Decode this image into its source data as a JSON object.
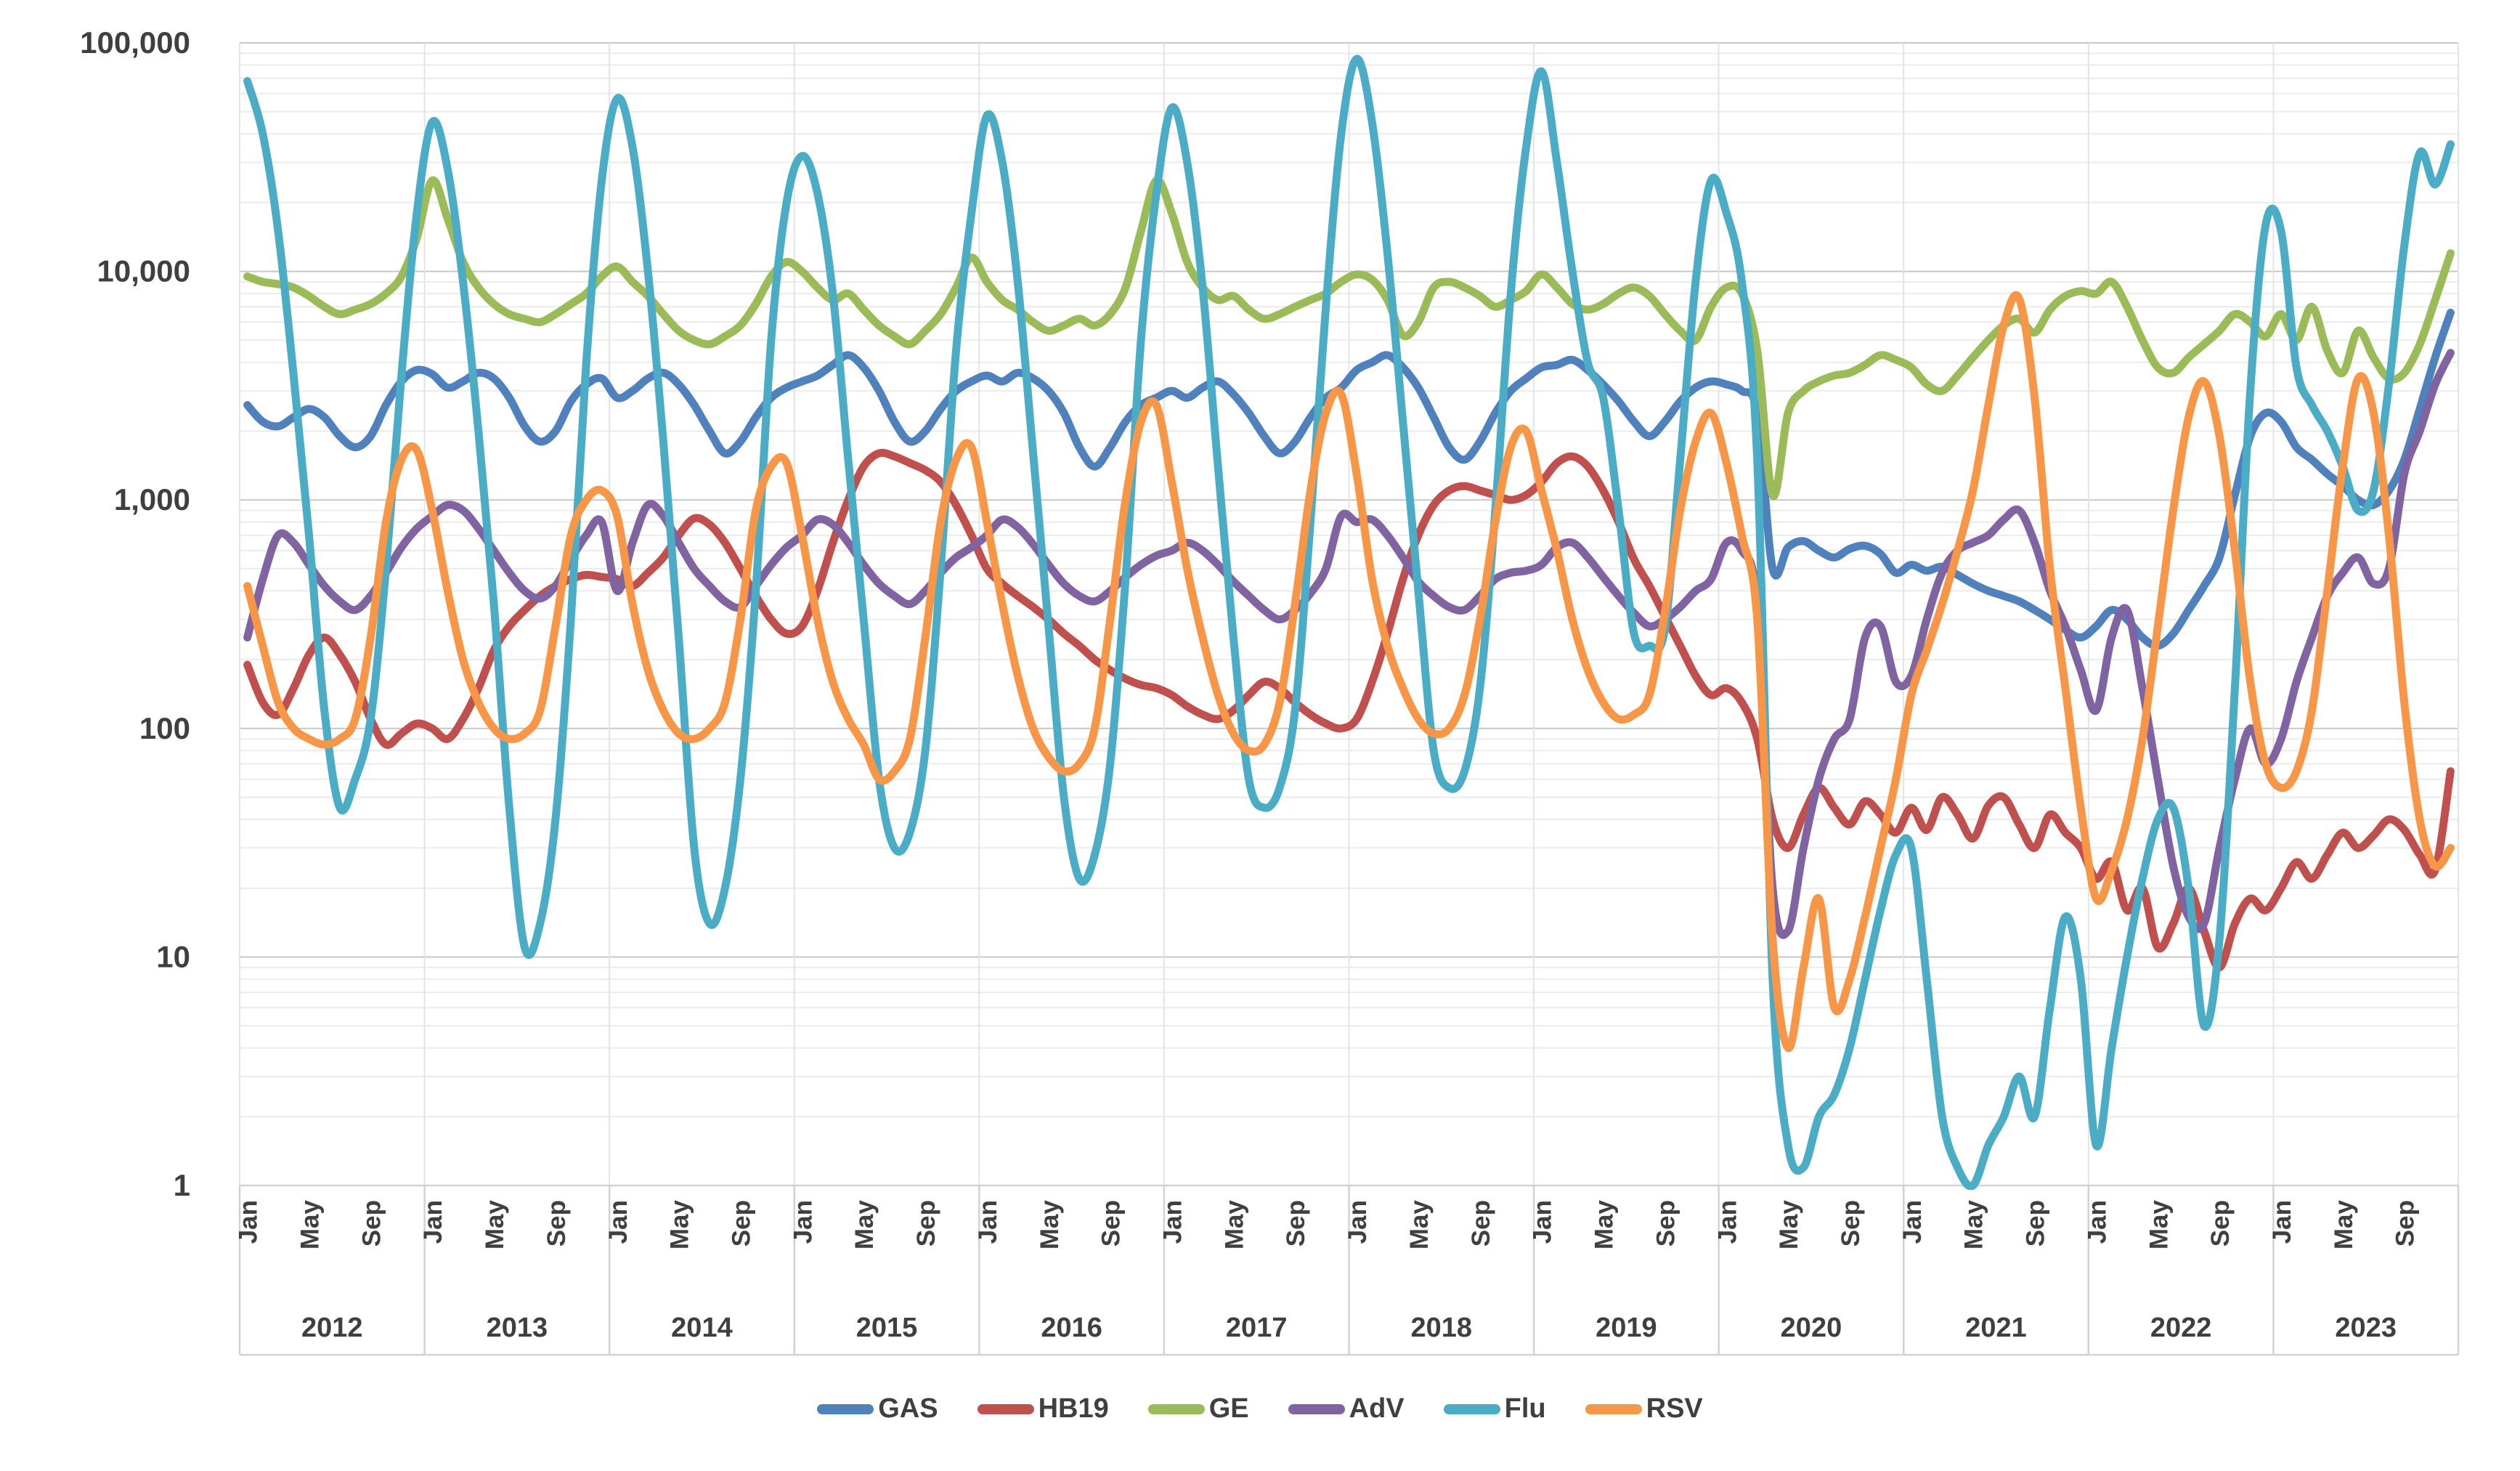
{
  "chart_data": {
    "type": "line",
    "title": "",
    "y_axis": {
      "scale": "log",
      "range": [
        1,
        100000
      ],
      "ticks": [
        1,
        10,
        100,
        1000,
        10000,
        100000
      ],
      "tick_labels": [
        "1",
        "10",
        "100",
        "1,000",
        "10,000",
        "100,000"
      ],
      "minor_gridlines": true
    },
    "x_axis": {
      "years": [
        "2012",
        "2013",
        "2014",
        "2015",
        "2016",
        "2017",
        "2018",
        "2019",
        "2020",
        "2021",
        "2022",
        "2023"
      ],
      "month_tick_labels": [
        "Jan",
        "May",
        "Sep"
      ],
      "month_tick_positions": [
        0,
        4,
        8
      ],
      "months_per_year": 12
    },
    "legend_position": "bottom",
    "colors": {
      "grid_minor": "#ebebeb",
      "grid_major": "#c7c7c7",
      "year_separator": "#e4e4e4",
      "axis_band_border": "#d2d2d2",
      "label_text": "#3f3f3f"
    },
    "series": [
      {
        "name": "GAS",
        "color": "#4F81BD",
        "values": [
          2600,
          2200,
          2100,
          2300,
          2500,
          2300,
          1900,
          1700,
          1900,
          2600,
          3300,
          3700,
          3550,
          3100,
          3300,
          3600,
          3400,
          2800,
          2100,
          1800,
          2000,
          2700,
          3200,
          3400,
          2800,
          3000,
          3400,
          3600,
          3200,
          2600,
          2000,
          1600,
          1800,
          2300,
          2800,
          3100,
          3300,
          3500,
          3900,
          4300,
          3800,
          3000,
          2200,
          1800,
          2000,
          2500,
          3000,
          3300,
          3500,
          3300,
          3600,
          3400,
          3000,
          2400,
          1700,
          1400,
          1700,
          2200,
          2600,
          2800,
          3000,
          2800,
          3100,
          3300,
          2900,
          2400,
          1900,
          1600,
          1800,
          2300,
          2800,
          3100,
          3700,
          4000,
          4300,
          3800,
          3100,
          2300,
          1700,
          1500,
          1800,
          2400,
          3000,
          3400,
          3800,
          3900,
          4100,
          3700,
          3200,
          2700,
          2200,
          1900,
          2200,
          2700,
          3100,
          3300,
          3200,
          3000,
          2400,
          500,
          620,
          660,
          600,
          560,
          610,
          630,
          580,
          480,
          520,
          490,
          510,
          470,
          430,
          400,
          380,
          360,
          330,
          300,
          270,
          250,
          280,
          330,
          300,
          250,
          230,
          260,
          330,
          420,
          560,
          1050,
          1900,
          2400,
          2200,
          1700,
          1500,
          1300,
          1150,
          1000,
          950,
          1100,
          1500,
          2500,
          4200,
          6600
        ]
      },
      {
        "name": "HB19",
        "color": "#C0504D",
        "values": [
          190,
          130,
          115,
          150,
          210,
          250,
          210,
          160,
          110,
          85,
          95,
          105,
          100,
          90,
          110,
          150,
          220,
          280,
          330,
          380,
          420,
          450,
          470,
          460,
          450,
          420,
          480,
          560,
          700,
          830,
          780,
          650,
          500,
          380,
          300,
          260,
          280,
          400,
          650,
          1000,
          1400,
          1600,
          1550,
          1450,
          1350,
          1200,
          950,
          700,
          500,
          430,
          380,
          340,
          300,
          260,
          230,
          200,
          180,
          165,
          155,
          150,
          140,
          125,
          115,
          110,
          120,
          140,
          160,
          150,
          130,
          115,
          105,
          100,
          110,
          160,
          260,
          450,
          700,
          950,
          1100,
          1150,
          1100,
          1050,
          1000,
          1050,
          1200,
          1450,
          1550,
          1400,
          1100,
          800,
          550,
          420,
          310,
          230,
          170,
          140,
          150,
          130,
          90,
          40,
          30,
          42,
          55,
          45,
          38,
          48,
          42,
          35,
          45,
          36,
          50,
          42,
          33,
          46,
          50,
          38,
          30,
          42,
          35,
          30,
          22,
          26,
          16,
          20,
          11,
          14,
          20,
          13,
          9,
          14,
          18,
          16,
          20,
          26,
          22,
          28,
          35,
          30,
          34,
          40,
          36,
          28,
          24,
          65
        ]
      },
      {
        "name": "GE",
        "color": "#9BBB59",
        "values": [
          9500,
          9000,
          8800,
          8500,
          7800,
          7000,
          6500,
          6800,
          7200,
          8000,
          9500,
          14000,
          25000,
          17000,
          11000,
          8500,
          7200,
          6500,
          6200,
          6000,
          6500,
          7200,
          8000,
          9500,
          10500,
          9000,
          7800,
          6500,
          5500,
          5000,
          4800,
          5200,
          5800,
          7200,
          9500,
          11000,
          10000,
          8500,
          7500,
          8000,
          6800,
          5800,
          5200,
          4800,
          5500,
          6500,
          8500,
          11500,
          9000,
          7500,
          6800,
          6000,
          5500,
          5800,
          6200,
          5800,
          6500,
          8500,
          15000,
          25000,
          18000,
          11000,
          8500,
          7500,
          7800,
          6800,
          6200,
          6500,
          7000,
          7500,
          8000,
          9000,
          9700,
          9200,
          7500,
          5250,
          6000,
          8500,
          9000,
          8500,
          7800,
          7000,
          7500,
          8200,
          9700,
          8500,
          7200,
          6800,
          7200,
          8000,
          8500,
          7800,
          6500,
          5500,
          5000,
          7000,
          8500,
          8000,
          4500,
          1050,
          2400,
          3000,
          3300,
          3500,
          3600,
          3900,
          4300,
          4100,
          3800,
          3200,
          3000,
          3500,
          4200,
          5000,
          5800,
          6200,
          5400,
          6800,
          7800,
          8200,
          8000,
          9000,
          7000,
          5000,
          3800,
          3600,
          4200,
          4800,
          5500,
          6500,
          6000,
          5200,
          6500,
          5000,
          7000,
          4500,
          3600,
          5500,
          4200,
          3400,
          3600,
          4800,
          7500,
          12000
        ]
      },
      {
        "name": "AdV",
        "color": "#8064A2",
        "values": [
          250,
          450,
          700,
          650,
          520,
          420,
          360,
          330,
          380,
          480,
          620,
          750,
          850,
          950,
          900,
          750,
          600,
          480,
          400,
          370,
          420,
          550,
          700,
          800,
          400,
          650,
          950,
          850,
          650,
          500,
          420,
          360,
          340,
          420,
          520,
          620,
          700,
          820,
          780,
          650,
          520,
          430,
          380,
          350,
          400,
          480,
          560,
          620,
          700,
          820,
          760,
          640,
          520,
          430,
          380,
          360,
          400,
          460,
          520,
          570,
          600,
          650,
          600,
          520,
          440,
          380,
          330,
          300,
          330,
          390,
          500,
          850,
          800,
          820,
          700,
          560,
          440,
          380,
          340,
          330,
          380,
          450,
          480,
          490,
          520,
          620,
          650,
          560,
          460,
          380,
          320,
          280,
          300,
          340,
          400,
          450,
          650,
          600,
          350,
          20,
          13,
          30,
          60,
          90,
          110,
          250,
          280,
          160,
          170,
          300,
          480,
          600,
          650,
          700,
          820,
          900,
          650,
          400,
          280,
          180,
          120,
          250,
          330,
          150,
          60,
          25,
          15,
          14,
          30,
          60,
          100,
          70,
          90,
          160,
          250,
          380,
          480,
          560,
          430,
          500,
          1300,
          2000,
          3200,
          4400
        ]
      },
      {
        "name": "Flu",
        "color": "#4BACC6",
        "values": [
          68000,
          40000,
          15000,
          3500,
          700,
          120,
          45,
          60,
          110,
          500,
          3500,
          18000,
          45000,
          28000,
          9000,
          2000,
          350,
          45,
          11,
          14,
          40,
          300,
          4000,
          25000,
          57000,
          35000,
          10000,
          1800,
          250,
          30,
          14,
          20,
          60,
          400,
          5000,
          20000,
          32000,
          22000,
          8000,
          1500,
          300,
          60,
          30,
          35,
          80,
          500,
          4500,
          18000,
          48000,
          30000,
          9000,
          1600,
          280,
          50,
          22,
          28,
          70,
          450,
          5000,
          22000,
          52000,
          30000,
          8500,
          1400,
          250,
          60,
          45,
          55,
          120,
          800,
          7000,
          40000,
          85000,
          45000,
          12000,
          2200,
          400,
          80,
          55,
          65,
          150,
          900,
          8000,
          35000,
          75000,
          30000,
          10000,
          4000,
          2800,
          900,
          260,
          230,
          270,
          1500,
          9000,
          25000,
          18000,
          9000,
          1500,
          8,
          1.5,
          1.2,
          2,
          2.5,
          4,
          8,
          16,
          28,
          30,
          8,
          2,
          1.2,
          1,
          1.5,
          2,
          3,
          2,
          6,
          15,
          8,
          1.5,
          4,
          10,
          22,
          40,
          45,
          20,
          5,
          12,
          150,
          3000,
          16000,
          15000,
          3800,
          2600,
          2000,
          1400,
          900,
          1100,
          3200,
          13000,
          33000,
          24000,
          36000
        ]
      },
      {
        "name": "RSV",
        "color": "#F79646",
        "values": [
          420,
          230,
          130,
          100,
          90,
          85,
          90,
          110,
          250,
          800,
          1500,
          1650,
          900,
          400,
          200,
          130,
          100,
          90,
          95,
          120,
          280,
          700,
          1000,
          1100,
          850,
          350,
          180,
          120,
          95,
          90,
          100,
          130,
          300,
          900,
          1400,
          1450,
          700,
          300,
          160,
          110,
          85,
          60,
          65,
          90,
          250,
          800,
          1500,
          1700,
          800,
          350,
          170,
          100,
          75,
          65,
          70,
          100,
          300,
          1000,
          2200,
          2600,
          1200,
          500,
          250,
          140,
          95,
          80,
          85,
          130,
          350,
          1100,
          2400,
          2900,
          1300,
          450,
          230,
          150,
          110,
          95,
          100,
          140,
          300,
          800,
          1700,
          2000,
          1100,
          600,
          300,
          180,
          130,
          110,
          115,
          140,
          320,
          900,
          1800,
          2400,
          1450,
          700,
          300,
          12,
          4,
          9,
          18,
          6,
          8,
          15,
          30,
          60,
          140,
          220,
          350,
          600,
          1100,
          2600,
          5800,
          7600,
          2800,
          500,
          150,
          45,
          18,
          24,
          40,
          90,
          280,
          900,
          2300,
          3300,
          1900,
          600,
          160,
          70,
          55,
          65,
          120,
          400,
          1400,
          3400,
          2400,
          700,
          130,
          40,
          25,
          30
        ]
      }
    ],
    "layout": {
      "plot_left": 330,
      "plot_right": 3385,
      "plot_top": 59,
      "plot_bottom": 1632,
      "band_bottom": 1865,
      "y_label_x": 262
    }
  }
}
